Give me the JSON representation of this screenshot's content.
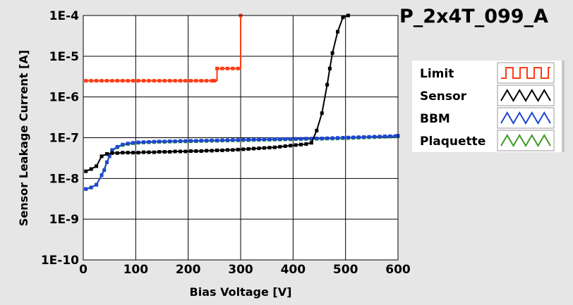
{
  "chart_data": {
    "type": "line",
    "title": "P_2x4T_099_A",
    "xlabel": "Bias Voltage [V]",
    "ylabel": "Sensor Leakage Current [A]",
    "xlim": [
      0,
      600
    ],
    "ylim": [
      1e-10,
      0.0001
    ],
    "yscale": "log",
    "grid": true,
    "legend_position": "right",
    "x_ticks": [
      0,
      100,
      200,
      300,
      400,
      500,
      600
    ],
    "x_tick_labels": [
      "0",
      "100",
      "200",
      "300",
      "400",
      "500",
      "600"
    ],
    "y_ticks": [
      1e-10,
      1e-09,
      1e-08,
      1e-07,
      1e-06,
      1e-05,
      0.0001
    ],
    "y_tick_labels": [
      "1E-10",
      "1E-9",
      "1E-8",
      "1E-7",
      "1E-6",
      "1E-5",
      "1E-4"
    ],
    "series": [
      {
        "name": "Limit",
        "color": "#ff3c14",
        "step": true,
        "x": [
          5,
          15,
          25,
          35,
          45,
          55,
          65,
          75,
          85,
          95,
          105,
          115,
          125,
          135,
          145,
          155,
          165,
          175,
          185,
          195,
          205,
          215,
          225,
          235,
          245,
          250,
          255,
          265,
          275,
          285,
          295,
          300
        ],
        "y": [
          2.5e-06,
          2.5e-06,
          2.5e-06,
          2.5e-06,
          2.5e-06,
          2.5e-06,
          2.5e-06,
          2.5e-06,
          2.5e-06,
          2.5e-06,
          2.5e-06,
          2.5e-06,
          2.5e-06,
          2.5e-06,
          2.5e-06,
          2.5e-06,
          2.5e-06,
          2.5e-06,
          2.5e-06,
          2.5e-06,
          2.5e-06,
          2.5e-06,
          2.5e-06,
          2.5e-06,
          2.5e-06,
          2.5e-06,
          5e-06,
          5e-06,
          5e-06,
          5e-06,
          5e-06,
          0.0001
        ]
      },
      {
        "name": "Sensor",
        "color": "#000000",
        "x": [
          5,
          15,
          25,
          35,
          45,
          55,
          65,
          75,
          85,
          95,
          105,
          115,
          125,
          135,
          145,
          155,
          165,
          175,
          185,
          195,
          205,
          215,
          225,
          235,
          245,
          255,
          265,
          275,
          285,
          295,
          305,
          315,
          325,
          335,
          345,
          355,
          365,
          375,
          385,
          395,
          405,
          415,
          425,
          435,
          445,
          455,
          465,
          470,
          475,
          485,
          495,
          505
        ],
        "y": [
          1.5e-08,
          1.7e-08,
          2e-08,
          3.5e-08,
          4e-08,
          4.2e-08,
          4.2e-08,
          4.3e-08,
          4.3e-08,
          4.3e-08,
          4.3e-08,
          4.4e-08,
          4.4e-08,
          4.4e-08,
          4.5e-08,
          4.5e-08,
          4.5e-08,
          4.6e-08,
          4.6e-08,
          4.6e-08,
          4.7e-08,
          4.7e-08,
          4.7e-08,
          4.8e-08,
          4.8e-08,
          4.9e-08,
          4.9e-08,
          5e-08,
          5e-08,
          5.1e-08,
          5.2e-08,
          5.3e-08,
          5.4e-08,
          5.5e-08,
          5.6e-08,
          5.7e-08,
          5.8e-08,
          6e-08,
          6.2e-08,
          6.4e-08,
          6.6e-08,
          6.8e-08,
          7e-08,
          7.5e-08,
          1.5e-07,
          4e-07,
          2e-06,
          5e-06,
          1.2e-05,
          4e-05,
          9e-05,
          0.0001
        ]
      },
      {
        "name": "BBM",
        "color": "#1e46d2",
        "x": [
          5,
          15,
          25,
          35,
          40,
          45,
          50,
          55,
          65,
          75,
          85,
          95,
          105,
          115,
          125,
          135,
          145,
          155,
          165,
          175,
          185,
          195,
          205,
          215,
          225,
          235,
          245,
          255,
          265,
          275,
          285,
          295,
          305,
          315,
          325,
          335,
          345,
          355,
          365,
          375,
          385,
          395,
          405,
          415,
          425,
          435,
          445,
          455,
          465,
          475,
          485,
          495,
          505,
          515,
          525,
          535,
          545,
          555,
          565,
          575,
          585,
          595,
          600
        ],
        "y": [
          5.5e-09,
          6e-09,
          7e-09,
          1.2e-08,
          1.6e-08,
          2.5e-08,
          3.5e-08,
          5e-08,
          6e-08,
          6.8e-08,
          7.2e-08,
          7.5e-08,
          7.7e-08,
          7.8e-08,
          7.9e-08,
          8e-08,
          8.1e-08,
          8.1e-08,
          8.2e-08,
          8.2e-08,
          8.3e-08,
          8.3e-08,
          8.4e-08,
          8.4e-08,
          8.5e-08,
          8.5e-08,
          8.6e-08,
          8.6e-08,
          8.7e-08,
          8.7e-08,
          8.8e-08,
          8.8e-08,
          8.9e-08,
          8.9e-08,
          9e-08,
          9e-08,
          9.1e-08,
          9.1e-08,
          9.2e-08,
          9.2e-08,
          9.3e-08,
          9.3e-08,
          9.4e-08,
          9.4e-08,
          9.5e-08,
          9.5e-08,
          9.6e-08,
          9.6e-08,
          9.7e-08,
          9.8e-08,
          9.9e-08,
          1e-07,
          1.01e-07,
          1.02e-07,
          1.03e-07,
          1.04e-07,
          1.05e-07,
          1.06e-07,
          1.07e-07,
          1.08e-07,
          1.09e-07,
          1.1e-07,
          1.12e-07
        ]
      },
      {
        "name": "Plaquette",
        "color": "#3c9a28",
        "x": [
          5,
          15,
          25,
          35,
          45,
          55,
          65,
          75,
          85,
          95,
          105,
          115,
          125,
          135,
          145,
          155,
          165,
          175,
          185,
          195,
          205,
          215,
          225,
          235,
          245,
          255,
          265,
          275,
          285,
          295,
          305,
          315,
          325,
          335,
          345,
          355,
          365,
          375,
          385,
          395,
          405,
          415,
          425,
          435,
          445,
          455,
          465,
          475,
          485,
          495,
          505,
          515,
          525,
          535,
          545,
          555,
          565,
          575,
          585,
          595,
          600
        ],
        "y": [
          5.5e-09,
          6e-09,
          7e-09,
          1.2e-08,
          2.5e-08,
          4.8e-08,
          5.8e-08,
          6.6e-08,
          7e-08,
          7.3e-08,
          7.5e-08,
          7.6e-08,
          7.7e-08,
          7.8e-08,
          7.9e-08,
          7.9e-08,
          8e-08,
          8e-08,
          8.1e-08,
          8.1e-08,
          8.2e-08,
          8.2e-08,
          8.3e-08,
          8.3e-08,
          8.4e-08,
          8.4e-08,
          8.5e-08,
          8.5e-08,
          8.6e-08,
          8.6e-08,
          8.7e-08,
          8.7e-08,
          8.8e-08,
          8.8e-08,
          8.9e-08,
          8.9e-08,
          9e-08,
          9e-08,
          9.1e-08,
          9.1e-08,
          9.2e-08,
          9.2e-08,
          9.3e-08,
          9.3e-08,
          9.4e-08,
          9.4e-08,
          9.5e-08,
          9.5e-08,
          9.6e-08,
          9.7e-08,
          9.8e-08,
          9.9e-08,
          1e-07,
          1.01e-07,
          1.02e-07,
          1.03e-07,
          1.04e-07,
          1.05e-07,
          1.06e-07,
          1.07e-07,
          1.08e-07
        ]
      }
    ]
  },
  "legend": {
    "items": [
      {
        "label": "Limit",
        "color": "#ff3c14",
        "icon": "square-wave-icon"
      },
      {
        "label": "Sensor",
        "color": "#000000",
        "icon": "triangle-wave-icon"
      },
      {
        "label": "BBM",
        "color": "#1e46d2",
        "icon": "triangle-wave-icon"
      },
      {
        "label": "Plaquette",
        "color": "#3c9a28",
        "icon": "triangle-wave-icon"
      }
    ]
  },
  "colors": {
    "background": "#e6e6e6",
    "plot_background": "#ffffff",
    "grid": "#000000"
  }
}
